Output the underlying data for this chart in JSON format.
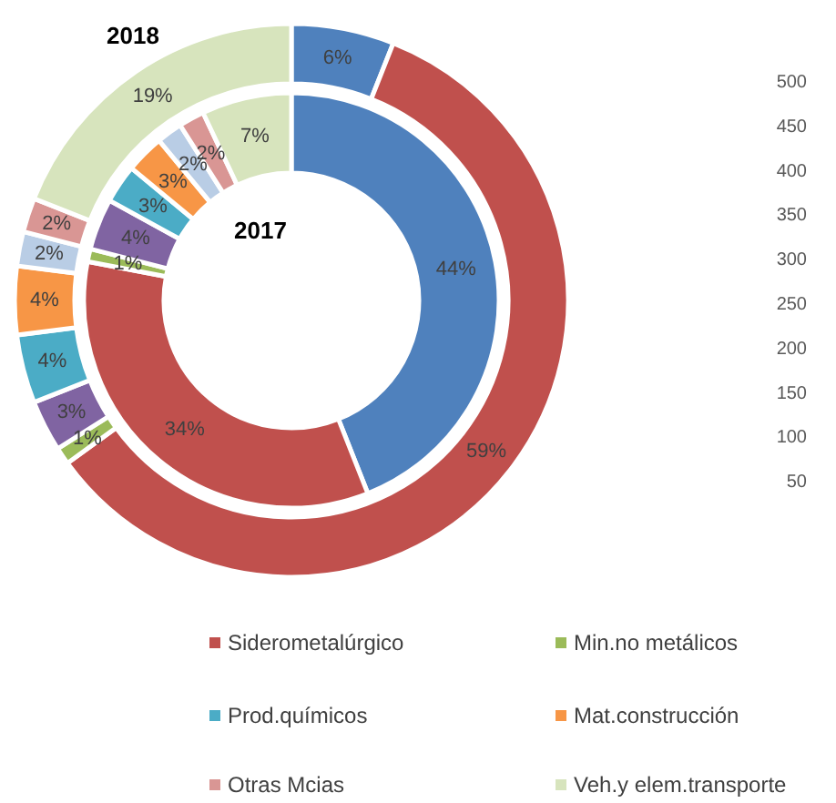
{
  "chart_data": {
    "type": "donut",
    "categories": [
      null,
      "Siderometalúrgico",
      "Min.no metálicos",
      null,
      "Prod.químicos",
      "Mat.construcción",
      null,
      "Otras Mcias",
      "Veh.y elem.transporte"
    ],
    "colors": [
      "#4f81bd",
      "#c0504d",
      "#9bbb59",
      "#8064a2",
      "#4bacc6",
      "#f79646",
      "#b9cde5",
      "#d99694",
      "#d7e4bd"
    ],
    "series": [
      {
        "name": "2017",
        "values": [
          44,
          34,
          1,
          4,
          3,
          3,
          2,
          2,
          7
        ],
        "value_labels": [
          "44%",
          "34%",
          "1%",
          "4%",
          "3%",
          "3%",
          "2%",
          "2%",
          "7%"
        ]
      },
      {
        "name": "2018",
        "values": [
          6,
          59,
          1,
          3,
          4,
          4,
          2,
          2,
          19
        ],
        "value_labels": [
          "6%",
          "59%",
          "1%",
          "3%",
          "4%",
          "4%",
          "2%",
          "2%",
          "19%"
        ]
      }
    ],
    "legend": "bottom",
    "annotations": [
      "500",
      "450",
      "400",
      "350",
      "300",
      "250",
      "200",
      "150",
      "100",
      "50"
    ]
  }
}
